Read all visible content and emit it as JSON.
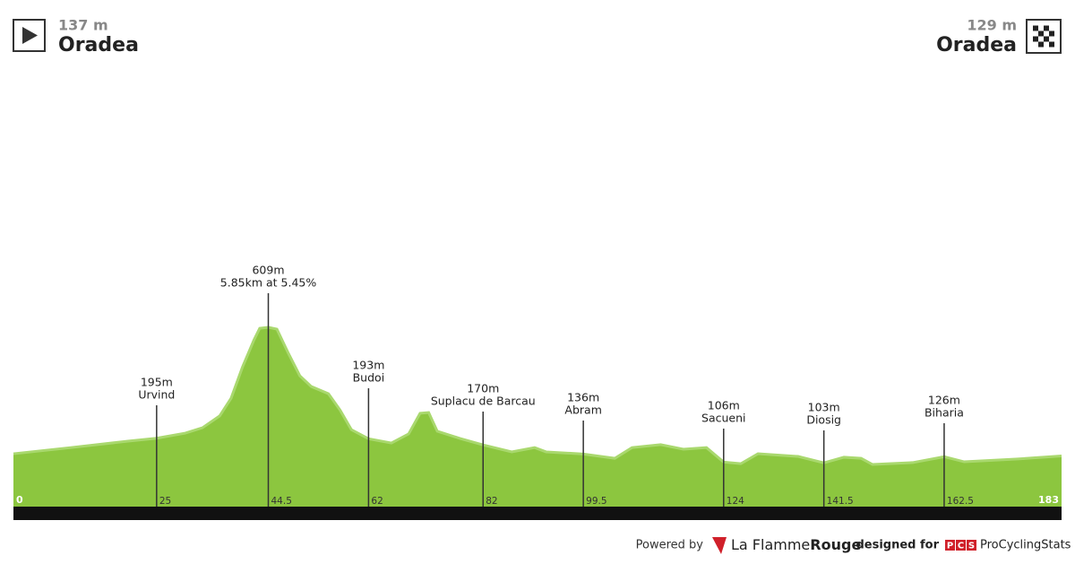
{
  "header": {
    "start": {
      "elevation": "137 m",
      "name": "Oradea"
    },
    "finish": {
      "elevation": "129 m",
      "name": "Oradea"
    }
  },
  "chart_data": {
    "type": "area",
    "color": "#8cc63f",
    "x": [
      0,
      10,
      20,
      25,
      30,
      33,
      36,
      38,
      40,
      42,
      43,
      44.5,
      46,
      48,
      50,
      52,
      55,
      57,
      59,
      62,
      66,
      69,
      71,
      72.5,
      74,
      78,
      82,
      87,
      91,
      93,
      99.5,
      105,
      108,
      113,
      117,
      121,
      124,
      127,
      130,
      137,
      141.5,
      145,
      148,
      150,
      157,
      162.5,
      166,
      175,
      183
    ],
    "values": [
      137,
      160,
      184,
      195,
      214,
      234,
      278,
      344,
      461,
      562,
      605,
      609,
      602,
      512,
      428,
      388,
      361,
      301,
      227,
      193,
      177,
      211,
      288,
      291,
      221,
      194,
      170,
      144,
      160,
      144,
      136,
      120,
      160,
      171,
      154,
      160,
      106,
      100,
      137,
      127,
      103,
      124,
      120,
      97,
      104,
      126,
      107,
      117,
      129
    ],
    "xlim": [
      0,
      183
    ],
    "xticks": [
      0,
      25,
      44.5,
      62,
      82,
      99.5,
      124,
      141.5,
      162.5,
      183
    ],
    "annotations": [
      {
        "x": 25,
        "lines": [
          "195m",
          "Urvind"
        ]
      },
      {
        "x": 44.5,
        "lines": [
          "609m",
          "5.85km at 5.45%"
        ]
      },
      {
        "x": 62,
        "lines": [
          "193m",
          "Budoi"
        ]
      },
      {
        "x": 82,
        "lines": [
          "170m",
          "Suplacu de Barcau"
        ]
      },
      {
        "x": 99.5,
        "lines": [
          "136m",
          "Abram"
        ]
      },
      {
        "x": 124,
        "lines": [
          "106m",
          "Sacueni"
        ]
      },
      {
        "x": 141.5,
        "lines": [
          "103m",
          "Diosig"
        ]
      },
      {
        "x": 162.5,
        "lines": [
          "126m",
          "Biharia"
        ]
      }
    ]
  },
  "footer": {
    "powered": "Powered by",
    "brand1": "La Flamme",
    "brand2": "Rouge",
    "designed": "designed for",
    "pcs": [
      "P",
      "C",
      "S"
    ],
    "site": "ProCyclingStats"
  }
}
